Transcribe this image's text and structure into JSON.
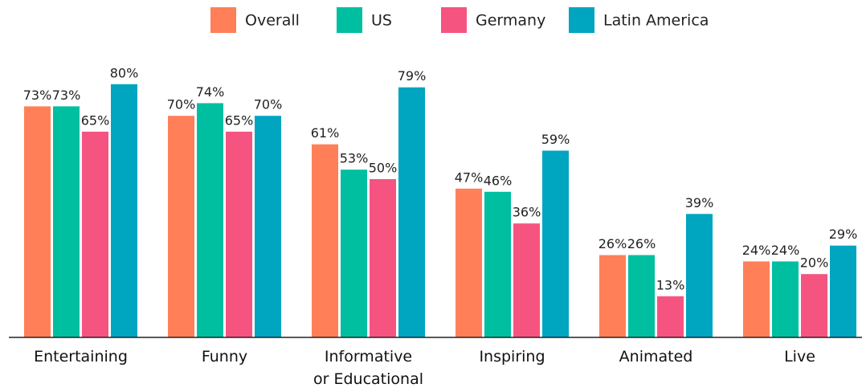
{
  "chart_data": {
    "type": "bar",
    "categories": [
      "Entertaining",
      "Funny",
      "Informative\nor Educational",
      "Inspiring",
      "Animated",
      "Live"
    ],
    "series": [
      {
        "name": "Overall",
        "color": "#ff7f59",
        "values": [
          73,
          70,
          61,
          47,
          26,
          24
        ],
        "value_labels": [
          "73%",
          "70%",
          "61%",
          "47%",
          "26%",
          "24%"
        ]
      },
      {
        "name": "US",
        "color": "#00bfa0",
        "values": [
          73,
          74,
          53,
          46,
          26,
          24
        ],
        "value_labels": [
          "73%",
          "74%",
          "53%",
          "46%",
          "26%",
          "24%"
        ]
      },
      {
        "name": "Germany",
        "color": "#f55480",
        "values": [
          65,
          65,
          50,
          36,
          13,
          20
        ],
        "value_labels": [
          "65%",
          "65%",
          "50%",
          "36%",
          "13%",
          "20%"
        ]
      },
      {
        "name": "Latin America",
        "color": "#00a5c0",
        "values": [
          80,
          70,
          79,
          59,
          39,
          29
        ],
        "value_labels": [
          "80%",
          "70%",
          "79%",
          "59%",
          "39%",
          "29%"
        ]
      }
    ],
    "ylim": [
      0,
      100
    ],
    "legend": "top"
  }
}
